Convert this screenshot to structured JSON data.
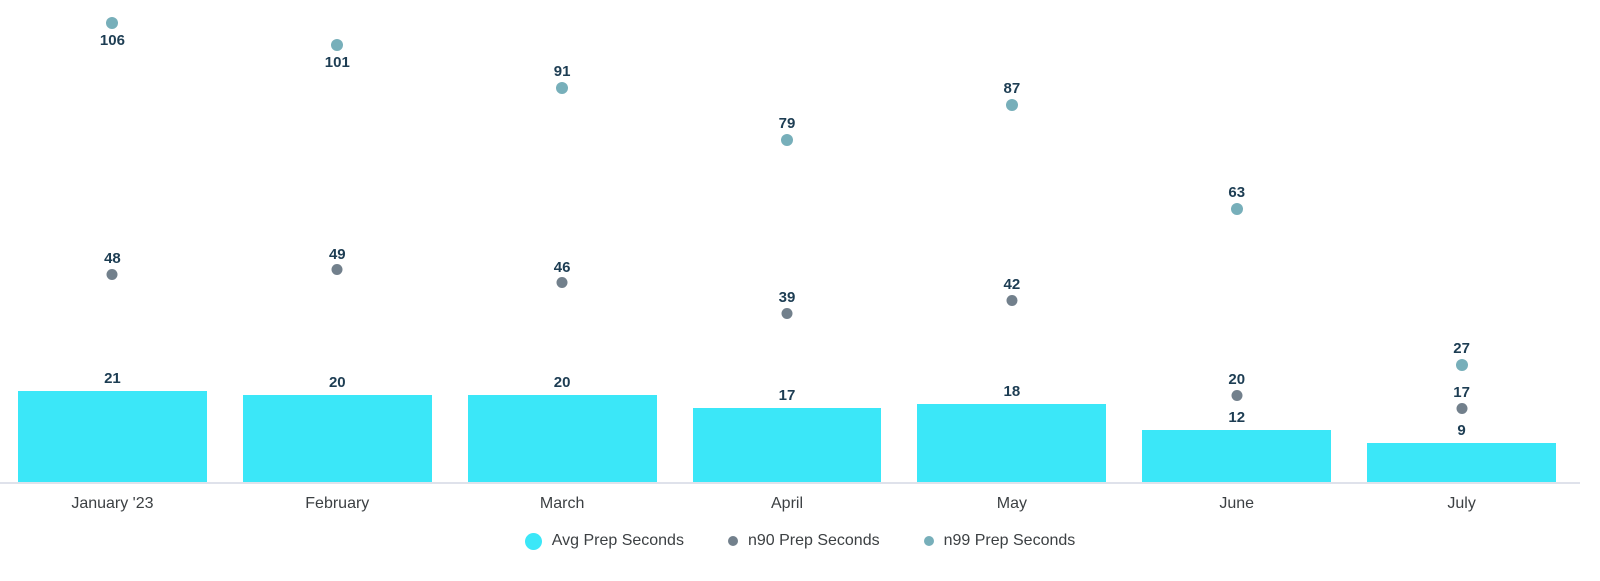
{
  "chart_data": {
    "type": "bar",
    "subtype": "combo-bar-scatter",
    "title": "",
    "xlabel": "",
    "ylabel": "",
    "categories": [
      "January '23",
      "February",
      "March",
      "April",
      "May",
      "June",
      "July"
    ],
    "series": [
      {
        "name": "Avg Prep Seconds",
        "type": "bar",
        "color": "#3BE7F8",
        "values": [
          21,
          20,
          20,
          17,
          18,
          12,
          9
        ]
      },
      {
        "name": "n90 Prep Seconds",
        "type": "point",
        "color": "#72808C",
        "values": [
          48,
          49,
          46,
          39,
          42,
          20,
          17
        ]
      },
      {
        "name": "n99 Prep Seconds",
        "type": "point",
        "color": "#77AFBA",
        "values": [
          106,
          101,
          91,
          79,
          87,
          63,
          27
        ]
      }
    ],
    "ylim": [
      0,
      111
    ],
    "grid": false,
    "y_axis_visible": false,
    "legend_position": "bottom",
    "data_labels": true
  },
  "colors": {
    "background": "#FFFFFF",
    "value_label_text": "#1D3D53",
    "axis_text": "#3C4043",
    "axis_line": "#DFE2EB"
  }
}
